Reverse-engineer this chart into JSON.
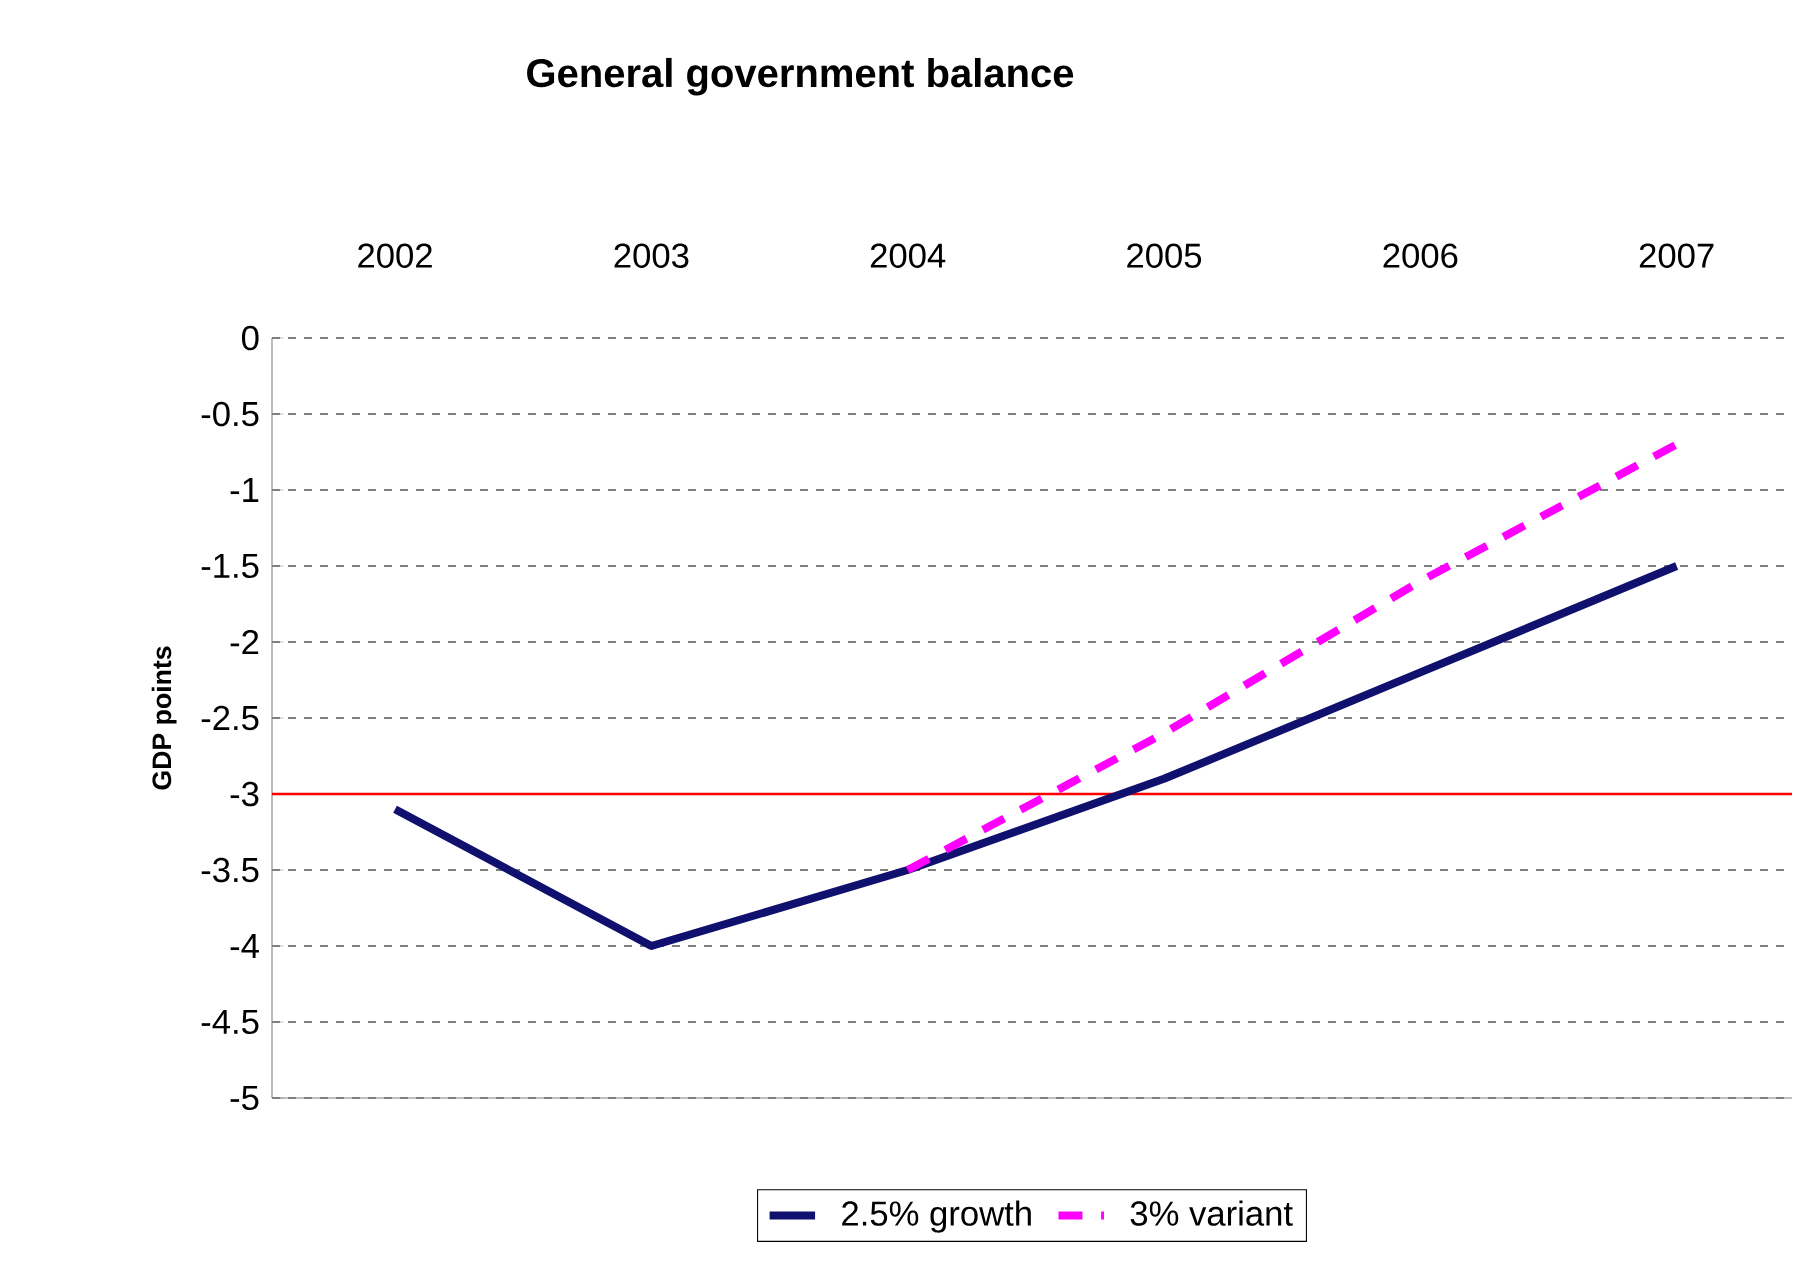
{
  "chart_data": {
    "type": "line",
    "title": "General government balance",
    "ylabel": "GDP points",
    "categories": [
      "2002",
      "2003",
      "2004",
      "2005",
      "2006",
      "2007"
    ],
    "series": [
      {
        "name": "2.5% growth",
        "color": "#10106e",
        "line_style": "solid",
        "values": [
          -3.1,
          -4.0,
          -3.5,
          -2.9,
          -2.2,
          -1.5
        ]
      },
      {
        "name": "3% variant",
        "color": "#ff00ff",
        "line_style": "dashed",
        "values": [
          null,
          null,
          -3.5,
          -2.6,
          -1.6,
          -0.7
        ]
      }
    ],
    "ylim": [
      -5,
      0
    ],
    "yticks": [
      -5,
      -4.5,
      -4,
      -3.5,
      -3,
      -2.5,
      -2,
      -1.5,
      -1,
      -0.5,
      0
    ],
    "grid": "y",
    "legend": "bottom",
    "marker": "none",
    "ref_lines": [
      {
        "axis": "y",
        "value": -3,
        "color": "#ff0000"
      }
    ]
  }
}
